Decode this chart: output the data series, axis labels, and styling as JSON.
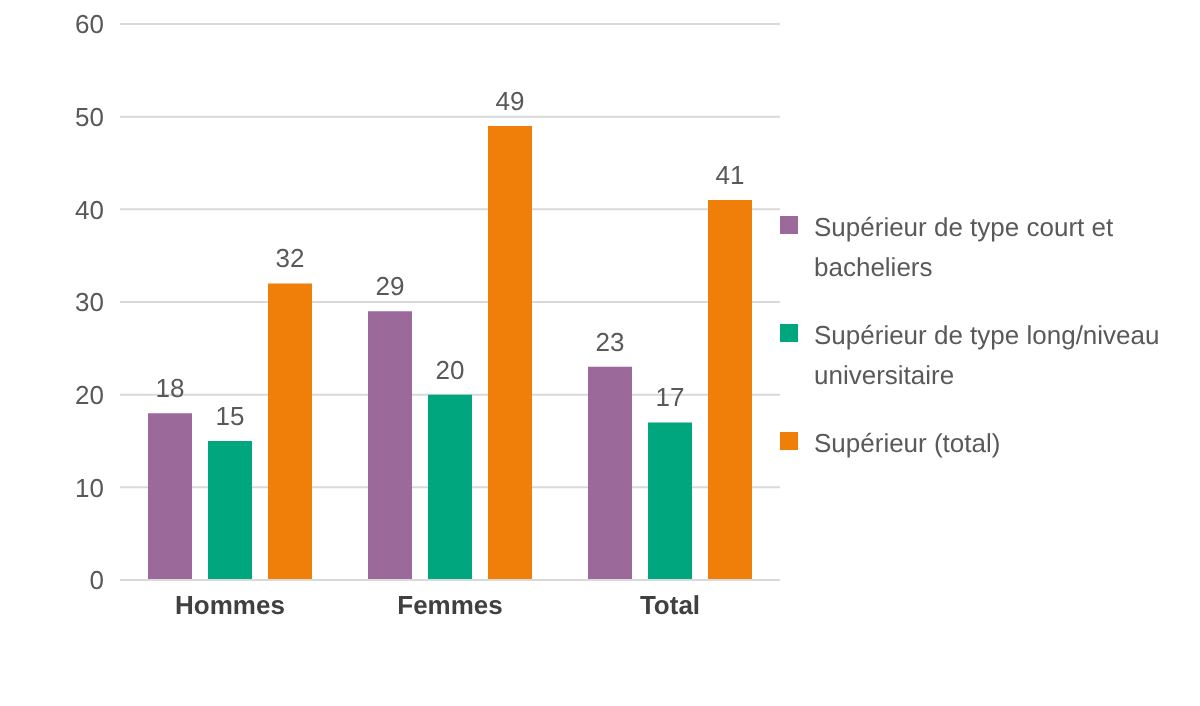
{
  "chart_data": {
    "type": "bar",
    "categories": [
      "Hommes",
      "Femmes",
      "Total"
    ],
    "series": [
      {
        "name": "Supérieur de type court et bacheliers",
        "color": "#9b6a9b",
        "values": [
          18,
          29,
          23
        ]
      },
      {
        "name": "Supérieur de type long/niveau universitaire",
        "color": "#00a77e",
        "values": [
          15,
          20,
          17
        ]
      },
      {
        "name": "Supérieur (total)",
        "color": "#f07f09",
        "values": [
          32,
          49,
          41
        ]
      }
    ],
    "ylim": [
      0,
      60
    ],
    "yticks": [
      0,
      10,
      20,
      30,
      40,
      50,
      60
    ],
    "grid": "y",
    "legend": "right",
    "data_labels": true
  }
}
